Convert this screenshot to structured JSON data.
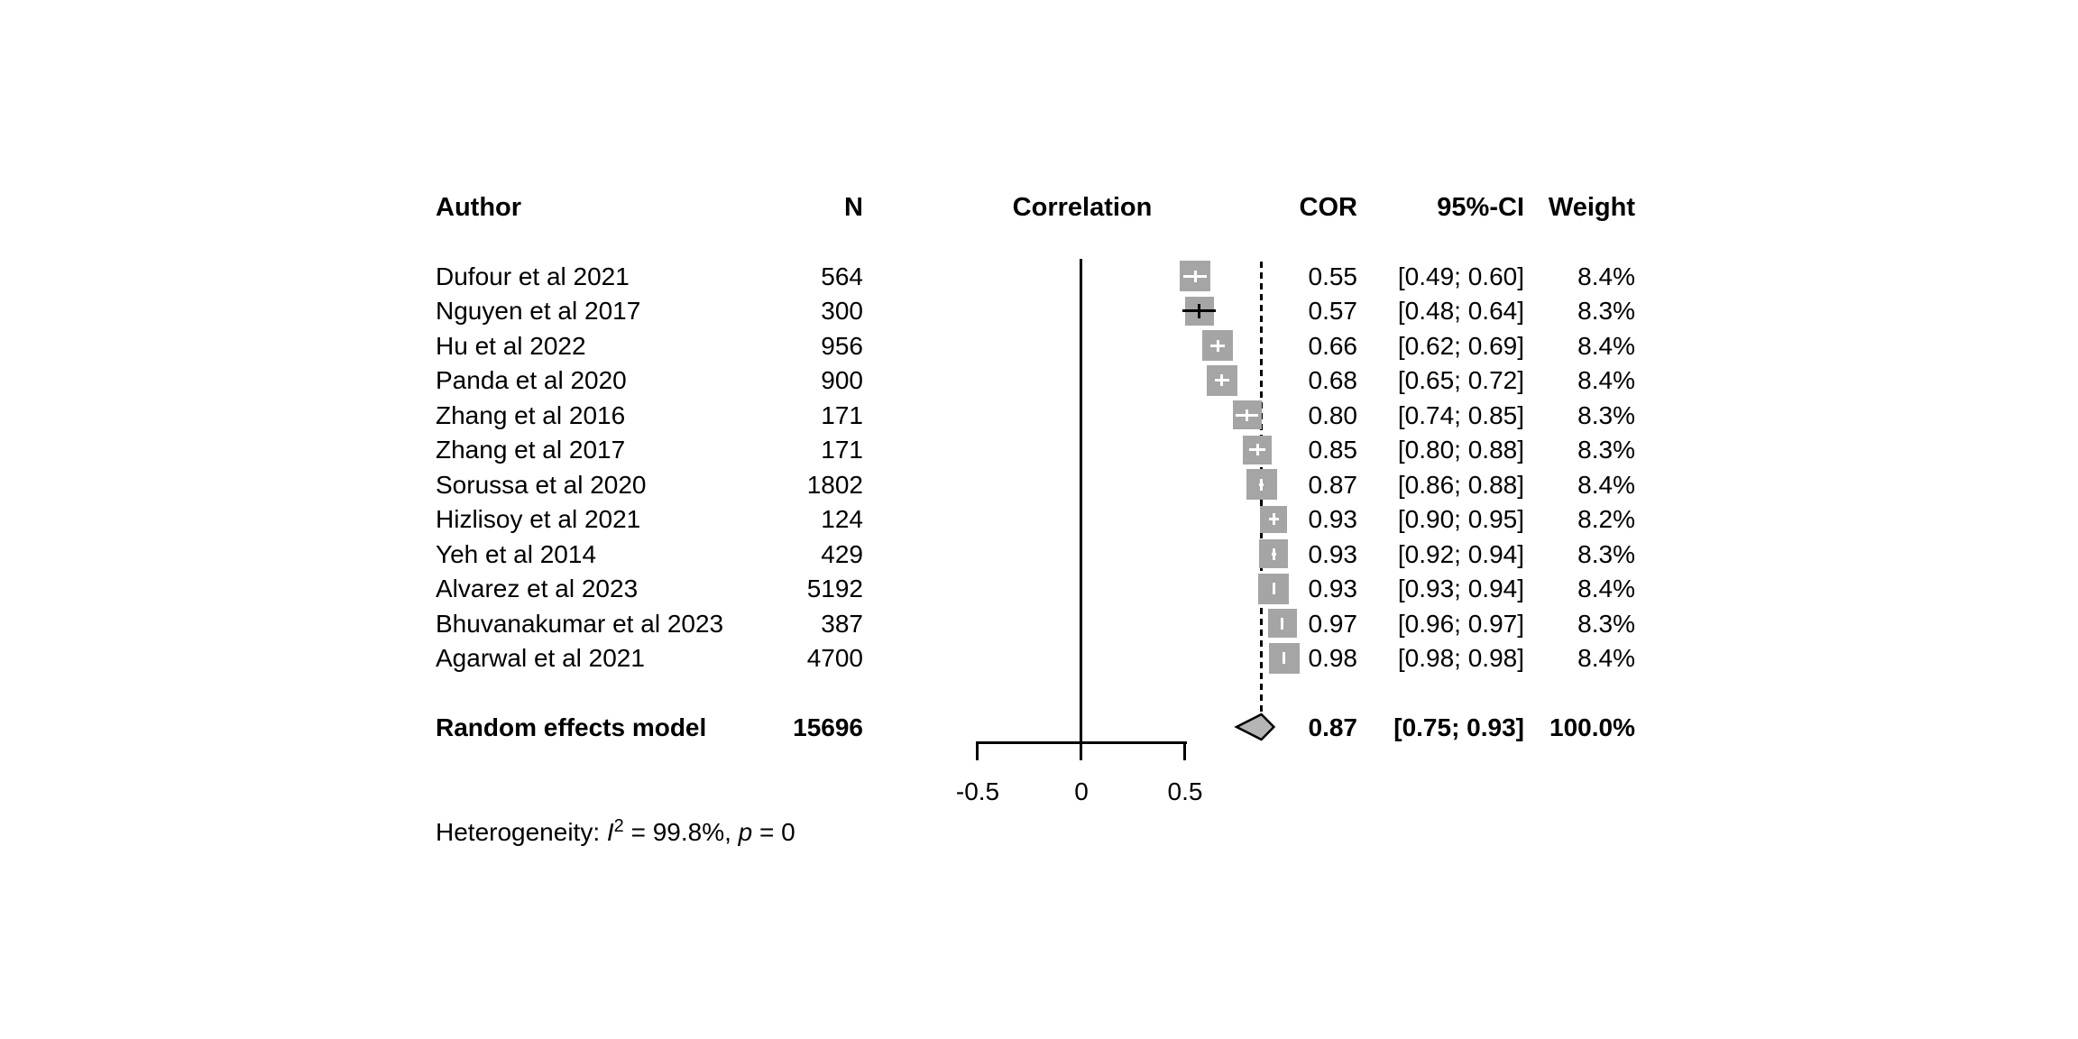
{
  "headers": {
    "author": "Author",
    "n": "N",
    "correlation": "Correlation",
    "cor": "COR",
    "ci": "95%-CI",
    "weight": "Weight"
  },
  "axis": {
    "tick_labels": [
      "-0.5",
      "0",
      "0.5"
    ]
  },
  "summary": {
    "label": "Random effects model",
    "n": "15696",
    "cor_label": "0.87",
    "ci_label": "[0.75; 0.93]",
    "weight_label": "100.0%"
  },
  "footer": {
    "prefix": "Heterogeneity: ",
    "i_symbol": "I",
    "i_sup": "2",
    "mid": " = 99.8%, ",
    "p_symbol": "p",
    "end": " = 0"
  },
  "colors": {
    "square": "#a5a5a5",
    "diamond_fill": "#b5b5b5",
    "line": "#000000",
    "background": "#ffffff"
  },
  "chart_data": {
    "type": "forest",
    "title": "",
    "xlabel": "Correlation",
    "effect_measure": "COR",
    "axis_ticks": [
      -0.5,
      0,
      0.5
    ],
    "reference_line": 0,
    "dashed_line_at": 0.87,
    "studies": [
      {
        "author": "Dufour et al 2021",
        "n": "564",
        "cor": 0.55,
        "ci": [
          0.49,
          0.6
        ],
        "cor_label": "0.55",
        "ci_label": "[0.49; 0.60]",
        "weight": 8.4,
        "weight_label": "8.4%"
      },
      {
        "author": "Nguyen et al 2017",
        "n": "300",
        "cor": 0.57,
        "ci": [
          0.48,
          0.64
        ],
        "cor_label": "0.57",
        "ci_label": "[0.48; 0.64]",
        "weight": 8.3,
        "weight_label": "8.3%"
      },
      {
        "author": "Hu et al 2022",
        "n": "956",
        "cor": 0.66,
        "ci": [
          0.62,
          0.69
        ],
        "cor_label": "0.66",
        "ci_label": "[0.62; 0.69]",
        "weight": 8.4,
        "weight_label": "8.4%"
      },
      {
        "author": "Panda et al 2020",
        "n": "900",
        "cor": 0.68,
        "ci": [
          0.65,
          0.72
        ],
        "cor_label": "0.68",
        "ci_label": "[0.65; 0.72]",
        "weight": 8.4,
        "weight_label": "8.4%"
      },
      {
        "author": "Zhang et al 2016",
        "n": "171",
        "cor": 0.8,
        "ci": [
          0.74,
          0.85
        ],
        "cor_label": "0.80",
        "ci_label": "[0.74; 0.85]",
        "weight": 8.3,
        "weight_label": "8.3%"
      },
      {
        "author": "Zhang et al 2017",
        "n": "171",
        "cor": 0.85,
        "ci": [
          0.8,
          0.88
        ],
        "cor_label": "0.85",
        "ci_label": "[0.80; 0.88]",
        "weight": 8.3,
        "weight_label": "8.3%"
      },
      {
        "author": "Sorussa et al 2020",
        "n": "1802",
        "cor": 0.87,
        "ci": [
          0.86,
          0.88
        ],
        "cor_label": "0.87",
        "ci_label": "[0.86; 0.88]",
        "weight": 8.4,
        "weight_label": "8.4%"
      },
      {
        "author": "Hizlisoy et al 2021",
        "n": "124",
        "cor": 0.93,
        "ci": [
          0.9,
          0.95
        ],
        "cor_label": "0.93",
        "ci_label": "[0.90; 0.95]",
        "weight": 8.2,
        "weight_label": "8.2%"
      },
      {
        "author": "Yeh et al 2014",
        "n": "429",
        "cor": 0.93,
        "ci": [
          0.92,
          0.94
        ],
        "cor_label": "0.93",
        "ci_label": "[0.92; 0.94]",
        "weight": 8.3,
        "weight_label": "8.3%"
      },
      {
        "author": "Alvarez et al 2023",
        "n": "5192",
        "cor": 0.93,
        "ci": [
          0.93,
          0.94
        ],
        "cor_label": "0.93",
        "ci_label": "[0.93; 0.94]",
        "weight": 8.4,
        "weight_label": "8.4%"
      },
      {
        "author": "Bhuvanakumar et al 2023",
        "n": "387",
        "cor": 0.97,
        "ci": [
          0.96,
          0.97
        ],
        "cor_label": "0.97",
        "ci_label": "[0.96; 0.97]",
        "weight": 8.3,
        "weight_label": "8.3%"
      },
      {
        "author": "Agarwal et al 2021",
        "n": "4700",
        "cor": 0.98,
        "ci": [
          0.98,
          0.98
        ],
        "cor_label": "0.98",
        "ci_label": "[0.98; 0.98]",
        "weight": 8.4,
        "weight_label": "8.4%"
      }
    ],
    "summary": {
      "label": "Random effects model",
      "n": 15696,
      "cor": 0.87,
      "ci": [
        0.75,
        0.93
      ],
      "weight": 100.0,
      "heterogeneity": {
        "I2": "99.8%",
        "p": "0"
      }
    }
  }
}
